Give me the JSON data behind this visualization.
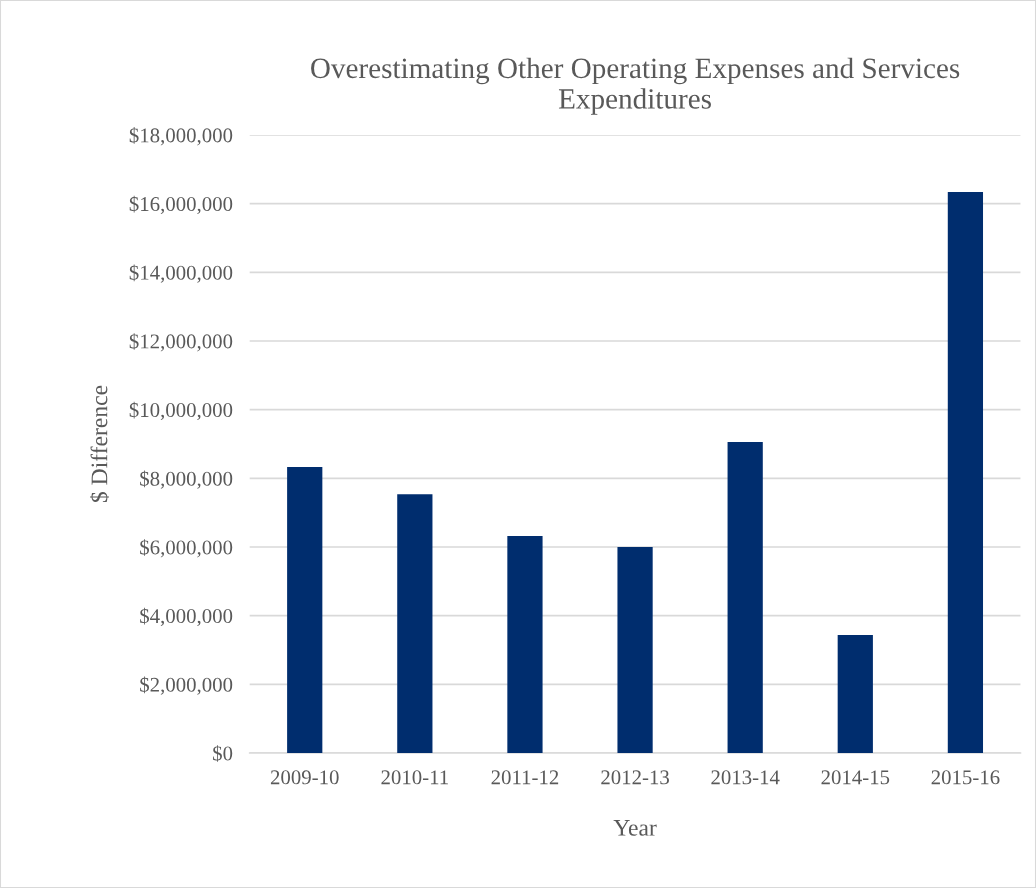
{
  "chart_data": {
    "type": "bar",
    "title": "Overestimating Other Operating Expenses and Services Expenditures",
    "xlabel": "Year",
    "ylabel": "$ Difference",
    "categories": [
      "2009-10",
      "2010-11",
      "2011-12",
      "2012-13",
      "2013-14",
      "2014-15",
      "2015-16"
    ],
    "values": [
      8330000,
      7540000,
      6320000,
      6000000,
      9060000,
      3440000,
      16340000
    ],
    "color": "#002d6e",
    "ylim": [
      0,
      18000000
    ],
    "yticks": [
      {
        "value": 0,
        "label": "$0"
      },
      {
        "value": 2000000,
        "label": "$2,000,000"
      },
      {
        "value": 4000000,
        "label": "$4,000,000"
      },
      {
        "value": 6000000,
        "label": "$6,000,000"
      },
      {
        "value": 8000000,
        "label": "$8,000,000"
      },
      {
        "value": 10000000,
        "label": "$10,000,000"
      },
      {
        "value": 12000000,
        "label": "$12,000,000"
      },
      {
        "value": 14000000,
        "label": "$14,000,000"
      },
      {
        "value": 16000000,
        "label": "$16,000,000"
      },
      {
        "value": 18000000,
        "label": "$18,000,000"
      }
    ],
    "grid": "y",
    "legend": false
  }
}
